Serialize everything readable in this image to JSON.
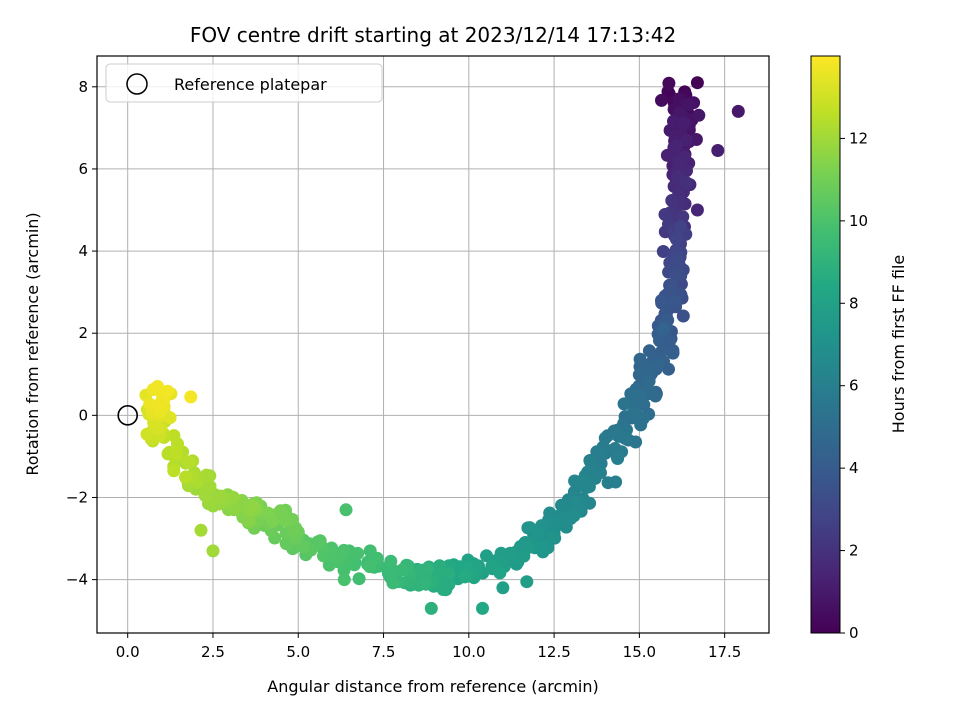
{
  "chart_data": {
    "type": "scatter",
    "title": "FOV centre drift starting at 2023/12/14 17:13:42",
    "xlabel": "Angular distance from reference (arcmin)",
    "ylabel": "Rotation from reference (arcmin)",
    "xlim": [
      -0.9,
      18.8
    ],
    "ylim": [
      -5.3,
      8.75
    ],
    "xticks": [
      0.0,
      2.5,
      5.0,
      7.5,
      10.0,
      12.5,
      15.0,
      17.5
    ],
    "xtick_labels": [
      "0.0",
      "2.5",
      "5.0",
      "7.5",
      "10.0",
      "12.5",
      "15.0",
      "17.5"
    ],
    "yticks": [
      -4,
      -2,
      0,
      2,
      4,
      6,
      8
    ],
    "ytick_labels": [
      "−4",
      "−2",
      "0",
      "2",
      "4",
      "6",
      "8"
    ],
    "grid": true,
    "legend": {
      "position": "top-left",
      "entries": [
        "Reference platepar"
      ]
    },
    "reference_point": {
      "x": 0.0,
      "y": 0.0
    },
    "colorbar": {
      "label": "Hours from first FF file",
      "colormap": "viridis",
      "range": [
        0,
        14
      ],
      "ticks": [
        0,
        2,
        4,
        6,
        8,
        10,
        12
      ],
      "tick_labels": [
        "0",
        "2",
        "4",
        "6",
        "8",
        "10",
        "12"
      ]
    },
    "series_path": [
      {
        "x": 16.1,
        "y": 7.7,
        "hours": 0.0,
        "jx": 0.45,
        "jy": 0.5
      },
      {
        "x": 16.3,
        "y": 7.2,
        "hours": 0.8,
        "jx": 0.4,
        "jy": 0.5
      },
      {
        "x": 16.1,
        "y": 5.6,
        "hours": 1.6,
        "jx": 0.35,
        "jy": 0.6
      },
      {
        "x": 16.1,
        "y": 4.0,
        "hours": 2.8,
        "jx": 0.3,
        "jy": 0.4
      },
      {
        "x": 16.0,
        "y": 2.6,
        "hours": 3.6,
        "jx": 0.35,
        "jy": 0.5
      },
      {
        "x": 15.5,
        "y": 1.2,
        "hours": 4.4,
        "jx": 0.35,
        "jy": 0.4
      },
      {
        "x": 14.8,
        "y": 0.0,
        "hours": 5.2,
        "jx": 0.45,
        "jy": 0.4
      },
      {
        "x": 13.8,
        "y": -1.3,
        "hours": 6.0,
        "jx": 0.45,
        "jy": 0.35
      },
      {
        "x": 12.5,
        "y": -2.7,
        "hours": 6.8,
        "jx": 0.5,
        "jy": 0.35
      },
      {
        "x": 11.3,
        "y": -3.5,
        "hours": 7.6,
        "jx": 0.45,
        "jy": 0.3
      },
      {
        "x": 9.3,
        "y": -4.0,
        "hours": 8.6,
        "jx": 0.6,
        "jy": 0.3
      },
      {
        "x": 7.7,
        "y": -3.8,
        "hours": 9.4,
        "jx": 0.5,
        "jy": 0.3
      },
      {
        "x": 5.3,
        "y": -3.2,
        "hours": 10.3,
        "jx": 0.3,
        "jy": 0.3
      },
      {
        "x": 4.3,
        "y": -2.5,
        "hours": 11.0,
        "jx": 0.5,
        "jy": 0.35
      },
      {
        "x": 2.8,
        "y": -2.1,
        "hours": 11.8,
        "jx": 0.5,
        "jy": 0.3
      },
      {
        "x": 0.8,
        "y": -0.4,
        "hours": 12.8,
        "jx": 0.4,
        "jy": 0.45
      },
      {
        "x": 1.0,
        "y": 0.5,
        "hours": 13.8,
        "jx": 0.4,
        "jy": 0.35
      }
    ],
    "points": [
      {
        "x": 16.7,
        "y": 8.1,
        "hours": 0.1
      },
      {
        "x": 17.9,
        "y": 7.4,
        "hours": 0.9
      },
      {
        "x": 17.3,
        "y": 6.45,
        "hours": 1.2
      },
      {
        "x": 16.7,
        "y": 5.0,
        "hours": 1.5
      },
      {
        "x": 6.4,
        "y": -2.3,
        "hours": 9.9
      },
      {
        "x": 6.35,
        "y": -4.0,
        "hours": 9.9
      },
      {
        "x": 2.15,
        "y": -2.8,
        "hours": 12.1
      },
      {
        "x": 2.5,
        "y": -3.3,
        "hours": 12.0
      },
      {
        "x": 1.7,
        "y": -1.5,
        "hours": 12.5
      },
      {
        "x": 1.35,
        "y": -1.35,
        "hours": 12.6
      },
      {
        "x": 1.85,
        "y": 0.45,
        "hours": 13.8
      },
      {
        "x": 10.4,
        "y": -4.7,
        "hours": 8.4
      },
      {
        "x": 11.0,
        "y": -4.2,
        "hours": 7.9
      },
      {
        "x": 11.7,
        "y": -4.05,
        "hours": 7.7
      },
      {
        "x": 13.1,
        "y": -1.6,
        "hours": 6.3
      },
      {
        "x": 15.7,
        "y": 2.1,
        "hours": 4.5
      },
      {
        "x": 8.9,
        "y": -4.7,
        "hours": 8.9
      }
    ]
  }
}
